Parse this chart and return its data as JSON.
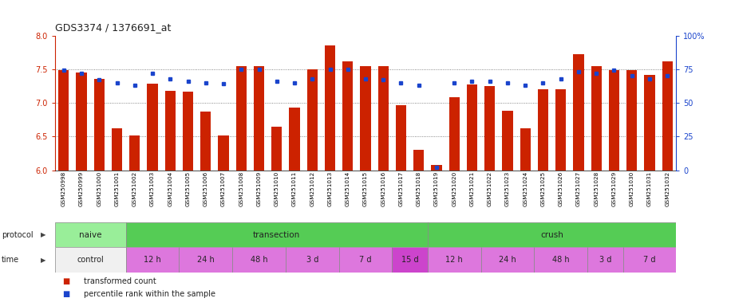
{
  "title": "GDS3374 / 1376691_at",
  "samples": [
    "GSM250998",
    "GSM250999",
    "GSM251000",
    "GSM251001",
    "GSM251002",
    "GSM251003",
    "GSM251004",
    "GSM251005",
    "GSM251006",
    "GSM251007",
    "GSM251008",
    "GSM251009",
    "GSM251010",
    "GSM251011",
    "GSM251012",
    "GSM251013",
    "GSM251014",
    "GSM251015",
    "GSM251016",
    "GSM251017",
    "GSM251018",
    "GSM251019",
    "GSM251020",
    "GSM251021",
    "GSM251022",
    "GSM251023",
    "GSM251024",
    "GSM251025",
    "GSM251026",
    "GSM251027",
    "GSM251028",
    "GSM251029",
    "GSM251030",
    "GSM251031",
    "GSM251032"
  ],
  "bar_values": [
    7.48,
    7.45,
    7.35,
    6.62,
    6.52,
    7.28,
    7.18,
    7.17,
    6.87,
    6.52,
    7.55,
    7.55,
    6.65,
    6.93,
    7.5,
    7.85,
    7.62,
    7.55,
    7.55,
    6.97,
    6.3,
    6.08,
    7.08,
    7.27,
    7.25,
    6.88,
    6.62,
    7.2,
    7.2,
    7.72,
    7.55,
    7.48,
    7.48,
    7.42,
    7.62
  ],
  "dot_values": [
    74,
    72,
    67,
    65,
    63,
    72,
    68,
    66,
    65,
    64,
    75,
    75,
    66,
    65,
    68,
    75,
    75,
    68,
    67,
    65,
    63,
    2,
    65,
    66,
    66,
    65,
    63,
    65,
    68,
    73,
    72,
    74,
    70,
    68,
    70
  ],
  "ylim_left": [
    6.0,
    8.0
  ],
  "ylim_right": [
    0,
    100
  ],
  "yticks_left": [
    6.0,
    6.5,
    7.0,
    7.5,
    8.0
  ],
  "yticks_right": [
    0,
    25,
    50,
    75,
    100
  ],
  "ytick_labels_right": [
    "0",
    "25",
    "50",
    "75",
    "100%"
  ],
  "bar_color": "#cc2200",
  "dot_color": "#1a44cc",
  "grid_color": "#888888",
  "grid_dotted_ticks": [
    6.5,
    7.0,
    7.5
  ],
  "protocol_regions": [
    {
      "label": "naive",
      "start": 0,
      "end": 4,
      "color": "#99ee99"
    },
    {
      "label": "transection",
      "start": 4,
      "end": 21,
      "color": "#55cc55"
    },
    {
      "label": "crush",
      "start": 21,
      "end": 35,
      "color": "#55cc55"
    }
  ],
  "time_regions": [
    {
      "label": "control",
      "start": 0,
      "end": 4,
      "color": "#f0f0f0"
    },
    {
      "label": "12 h",
      "start": 4,
      "end": 7,
      "color": "#dd77dd"
    },
    {
      "label": "24 h",
      "start": 7,
      "end": 10,
      "color": "#dd77dd"
    },
    {
      "label": "48 h",
      "start": 10,
      "end": 13,
      "color": "#dd77dd"
    },
    {
      "label": "3 d",
      "start": 13,
      "end": 16,
      "color": "#dd77dd"
    },
    {
      "label": "7 d",
      "start": 16,
      "end": 19,
      "color": "#dd77dd"
    },
    {
      "label": "15 d",
      "start": 19,
      "end": 21,
      "color": "#cc44cc"
    },
    {
      "label": "12 h",
      "start": 21,
      "end": 24,
      "color": "#dd77dd"
    },
    {
      "label": "24 h",
      "start": 24,
      "end": 27,
      "color": "#dd77dd"
    },
    {
      "label": "48 h",
      "start": 27,
      "end": 30,
      "color": "#dd77dd"
    },
    {
      "label": "3 d",
      "start": 30,
      "end": 32,
      "color": "#dd77dd"
    },
    {
      "label": "7 d",
      "start": 32,
      "end": 35,
      "color": "#dd77dd"
    }
  ],
  "legend_items": [
    {
      "color": "#cc2200",
      "label": "transformed count"
    },
    {
      "color": "#1a44cc",
      "label": "percentile rank within the sample"
    }
  ]
}
